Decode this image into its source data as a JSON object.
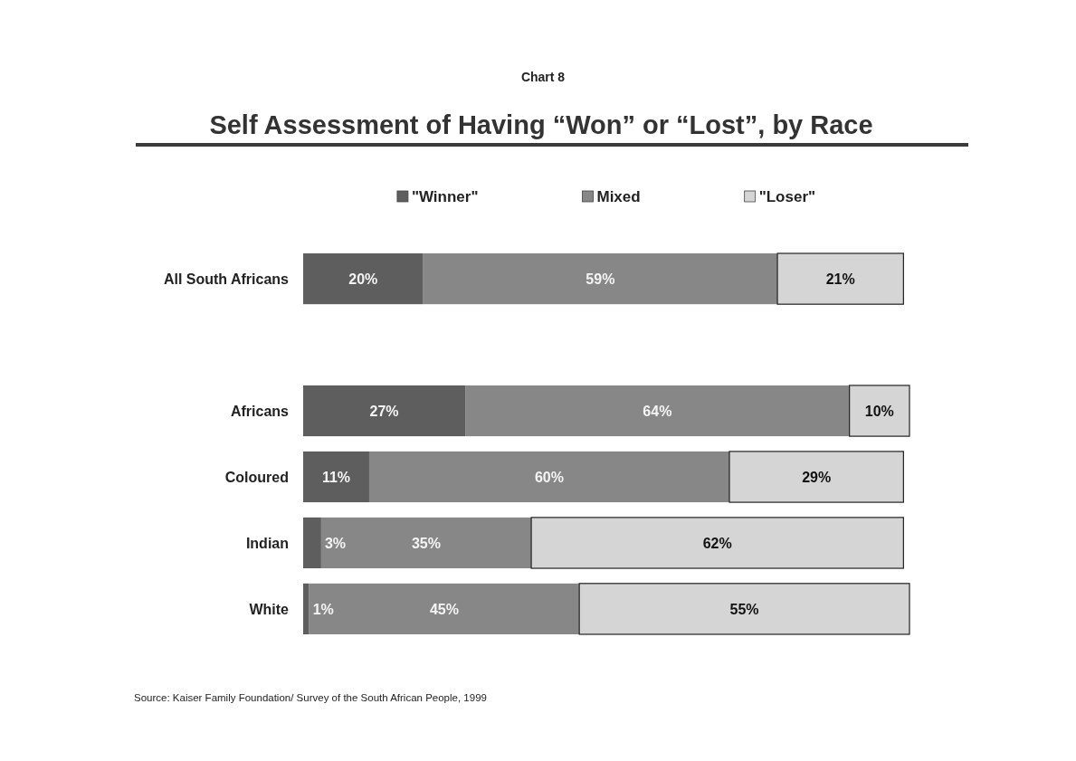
{
  "chart_data": {
    "type": "bar",
    "orientation": "horizontal",
    "stacked": true,
    "subtitle": "Chart 8",
    "title": "Self Assessment of Having “Won” or “Lost”, by Race",
    "categories": [
      "All South Africans",
      null,
      "Africans",
      "Coloured",
      "Indian",
      "White"
    ],
    "series": [
      {
        "name": "\"Winner\"",
        "color": "#5e5e5e",
        "values": [
          20,
          null,
          27,
          11,
          3,
          1
        ],
        "value_labels": [
          "20%",
          null,
          "27%",
          "11%",
          "3%",
          "1%"
        ]
      },
      {
        "name": "Mixed",
        "color": "#878787",
        "values": [
          59,
          null,
          64,
          60,
          35,
          45
        ],
        "value_labels": [
          "59%",
          null,
          "64%",
          "60%",
          "35%",
          "45%"
        ]
      },
      {
        "name": "\"Loser\"",
        "color": "#d5d5d5",
        "values": [
          21,
          null,
          10,
          29,
          62,
          55
        ],
        "value_labels": [
          "21%",
          null,
          "10%",
          "29%",
          "62%",
          "55%"
        ]
      }
    ],
    "legend": "top",
    "annotations": [
      "Source: Kaiser Family Foundation/ Survey of the South African People, 1999"
    ]
  }
}
